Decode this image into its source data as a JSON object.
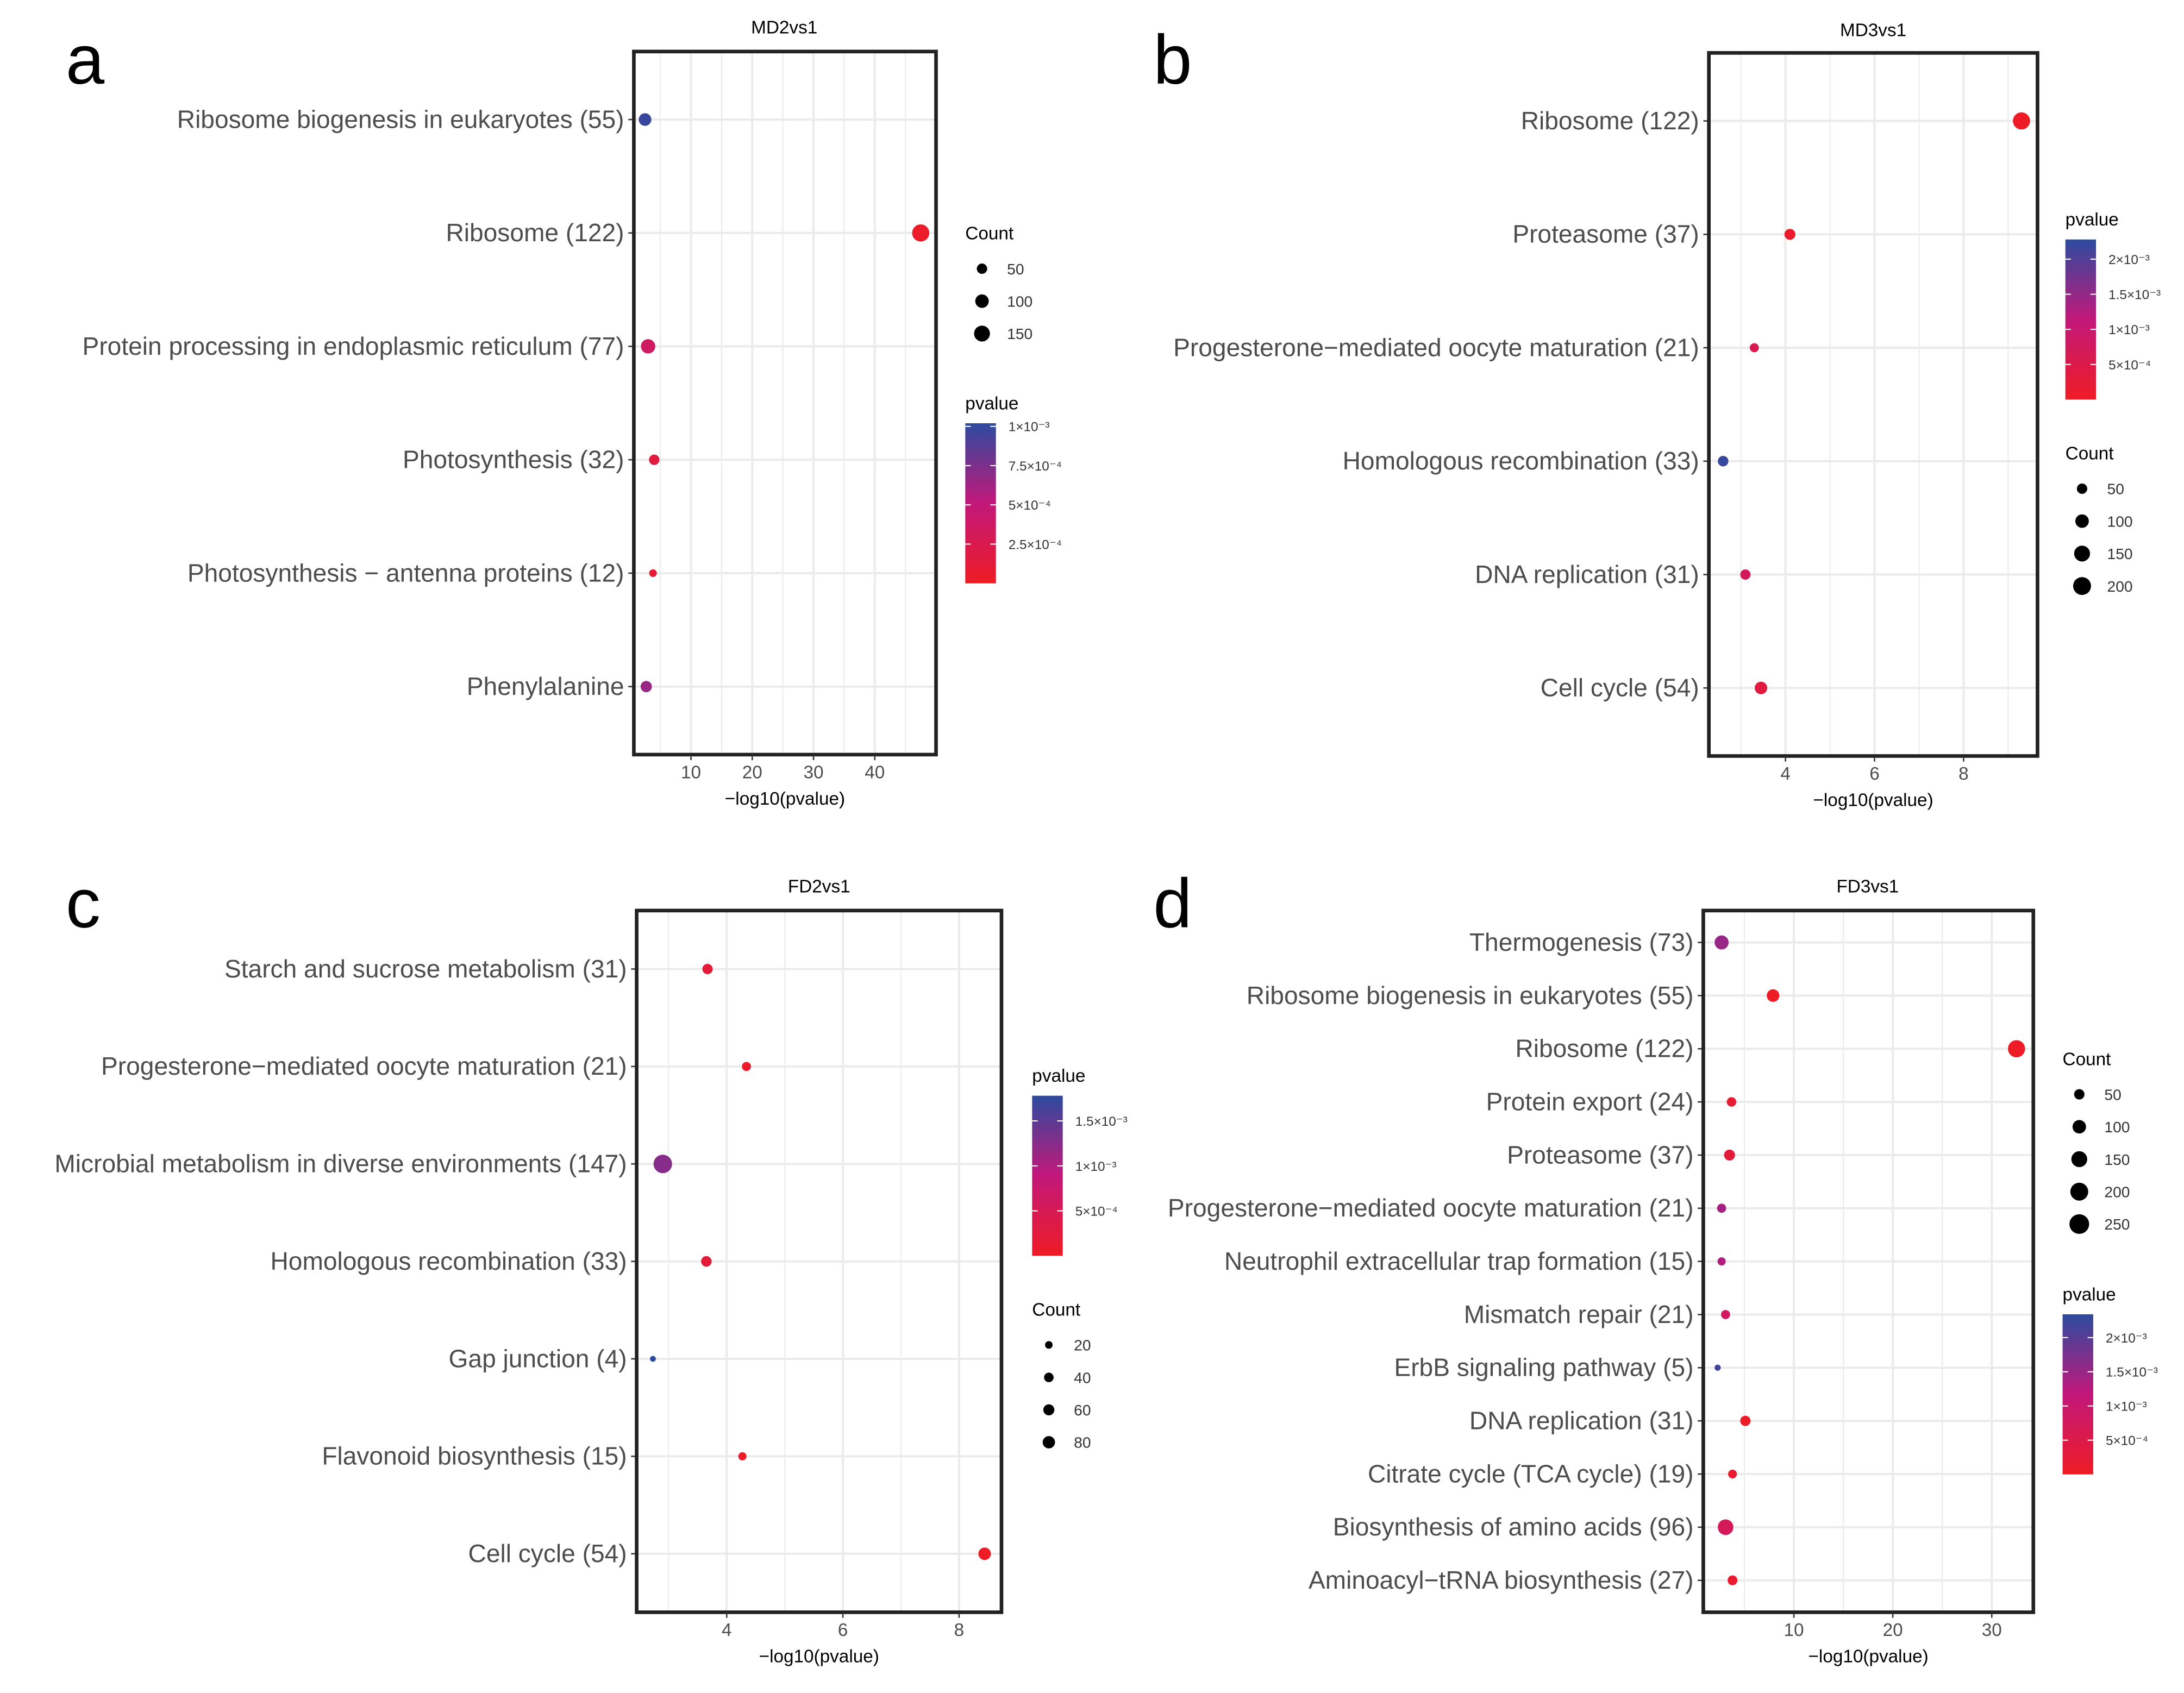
{
  "colors": {
    "low": "#ee1c25",
    "mid": "#c2187a",
    "high": "#2c4b9f",
    "grid": "#ebebeb"
  },
  "chart_data": [
    {
      "type": "scatter",
      "letter": "a",
      "title": "MD2vs1",
      "xlabel": "−log10(pvalue)",
      "xlim": [
        0.68,
        50
      ],
      "xticks": [
        10,
        20,
        30,
        40
      ],
      "grid": true,
      "rows": [
        {
          "label": "Ribosome biogenesis in eukaryotes (55)",
          "x": 2.5,
          "count": 55,
          "pvalue": 0.00098
        },
        {
          "label": "Ribosome (122)",
          "x": 47.5,
          "count": 122,
          "pvalue": 2e-05
        },
        {
          "label": "Protein processing in endoplasmic reticulum (77)",
          "x": 3.0,
          "count": 77,
          "pvalue": 0.00036
        },
        {
          "label": "Photosynthesis (32)",
          "x": 4.0,
          "count": 32,
          "pvalue": 0.00016
        },
        {
          "label": "Photosynthesis − antenna proteins (12)",
          "x": 3.8,
          "count": 12,
          "pvalue": 0.0001
        },
        {
          "label": "Phenylalanine",
          "x": 2.7,
          "count": 40,
          "pvalue": 0.00066
        }
      ],
      "count_legend": {
        "title": "Count",
        "values": [
          50,
          100,
          150
        ],
        "position": "right-top"
      },
      "pvalue_legend": {
        "title": "pvalue",
        "range": [
          0,
          0.00102
        ],
        "ticks": [
          {
            "label": "1×10⁻³",
            "value": 0.001
          },
          {
            "label": "7.5×10⁻⁴",
            "value": 0.00075
          },
          {
            "label": "5×10⁻⁴",
            "value": 0.0005
          },
          {
            "label": "2.5×10⁻⁴",
            "value": 0.00025
          }
        ],
        "position": "right-below"
      }
    },
    {
      "type": "scatter",
      "letter": "b",
      "title": "MD3vs1",
      "xlabel": "−log10(pvalue)",
      "xlim": [
        2.28,
        9.66
      ],
      "xticks": [
        4,
        6,
        8
      ],
      "grid": true,
      "rows": [
        {
          "label": "Ribosome (122)",
          "x": 9.3,
          "count": 122,
          "pvalue": 1e-05
        },
        {
          "label": "Proteasome (37)",
          "x": 4.1,
          "count": 37,
          "pvalue": 0.0001
        },
        {
          "label": "Progesterone−mediated oocyte maturation (21)",
          "x": 3.3,
          "count": 21,
          "pvalue": 0.0006
        },
        {
          "label": "Homologous recombination (33)",
          "x": 2.6,
          "count": 33,
          "pvalue": 0.0022
        },
        {
          "label": "DNA replication (31)",
          "x": 3.1,
          "count": 31,
          "pvalue": 0.0007
        },
        {
          "label": "Cell cycle (54)",
          "x": 3.45,
          "count": 54,
          "pvalue": 0.00035
        }
      ],
      "count_legend": {
        "title": "Count",
        "values": [
          50,
          100,
          150,
          200
        ],
        "position": "right-below"
      },
      "pvalue_legend": {
        "title": "pvalue",
        "range": [
          0,
          0.00228
        ],
        "ticks": [
          {
            "label": "2×10⁻³",
            "value": 0.002
          },
          {
            "label": "1.5×10⁻³",
            "value": 0.0015
          },
          {
            "label": "1×10⁻³",
            "value": 0.001
          },
          {
            "label": "5×10⁻⁴",
            "value": 0.0005
          }
        ],
        "position": "right-top"
      }
    },
    {
      "type": "scatter",
      "letter": "c",
      "title": "FD2vs1",
      "xlabel": "−log10(pvalue)",
      "xlim": [
        2.45,
        8.73
      ],
      "xticks": [
        4,
        6,
        8
      ],
      "grid": true,
      "rows": [
        {
          "label": "Starch and sucrose metabolism (31)",
          "x": 3.67,
          "count": 31,
          "pvalue": 0.00021
        },
        {
          "label": "Progesterone−mediated oocyte maturation (21)",
          "x": 4.34,
          "count": 21,
          "pvalue": 5e-05
        },
        {
          "label": "Microbial metabolism in diverse environments (147)",
          "x": 2.9,
          "count": 147,
          "pvalue": 0.00125
        },
        {
          "label": "Homologous recombination (33)",
          "x": 3.65,
          "count": 33,
          "pvalue": 0.00022
        },
        {
          "label": "Gap junction (4)",
          "x": 2.73,
          "count": 4,
          "pvalue": 0.0018
        },
        {
          "label": "Flavonoid biosynthesis (15)",
          "x": 4.27,
          "count": 15,
          "pvalue": 5e-05
        },
        {
          "label": "Cell cycle (54)",
          "x": 8.44,
          "count": 54,
          "pvalue": 1e-05
        }
      ],
      "count_legend": {
        "title": "Count",
        "values": [
          20,
          40,
          60,
          80
        ],
        "position": "right-below"
      },
      "pvalue_legend": {
        "title": "pvalue",
        "range": [
          0,
          0.00178
        ],
        "ticks": [
          {
            "label": "1.5×10⁻³",
            "value": 0.0015
          },
          {
            "label": "1×10⁻³",
            "value": 0.001
          },
          {
            "label": "5×10⁻⁴",
            "value": 0.0005
          }
        ],
        "position": "right-top"
      }
    },
    {
      "type": "scatter",
      "letter": "d",
      "title": "FD3vs1",
      "xlabel": "−log10(pvalue)",
      "xlim": [
        0.85,
        34.2
      ],
      "xticks": [
        10,
        20,
        30
      ],
      "grid": true,
      "rows": [
        {
          "label": "Thermogenesis (73)",
          "x": 2.7,
          "count": 73,
          "pvalue": 0.0015
        },
        {
          "label": "Ribosome biogenesis in eukaryotes (55)",
          "x": 7.9,
          "count": 55,
          "pvalue": 2e-05
        },
        {
          "label": "Ribosome (122)",
          "x": 32.5,
          "count": 122,
          "pvalue": 1e-05
        },
        {
          "label": "Protein export (24)",
          "x": 3.7,
          "count": 24,
          "pvalue": 0.0002
        },
        {
          "label": "Proteasome (37)",
          "x": 3.5,
          "count": 37,
          "pvalue": 0.0003
        },
        {
          "label": "Progesterone−mediated oocyte maturation (21)",
          "x": 2.7,
          "count": 21,
          "pvalue": 0.0014
        },
        {
          "label": "Neutrophil extracellular trap formation (15)",
          "x": 2.7,
          "count": 15,
          "pvalue": 0.0013
        },
        {
          "label": "Mismatch repair (21)",
          "x": 3.1,
          "count": 21,
          "pvalue": 0.0008
        },
        {
          "label": "ErbB signaling pathway (5)",
          "x": 2.3,
          "count": 5,
          "pvalue": 0.0022
        },
        {
          "label": "DNA replication (31)",
          "x": 5.1,
          "count": 31,
          "pvalue": 5e-05
        },
        {
          "label": "Citrate cycle (TCA cycle) (19)",
          "x": 3.8,
          "count": 19,
          "pvalue": 0.00015
        },
        {
          "label": "Biosynthesis of amino acids (96)",
          "x": 3.1,
          "count": 96,
          "pvalue": 0.0007
        },
        {
          "label": "Aminoacyl−tRNA biosynthesis (27)",
          "x": 3.8,
          "count": 27,
          "pvalue": 0.00015
        }
      ],
      "count_legend": {
        "title": "Count",
        "values": [
          50,
          100,
          150,
          200,
          250
        ],
        "position": "right-top"
      },
      "pvalue_legend": {
        "title": "pvalue",
        "range": [
          0,
          0.00234
        ],
        "ticks": [
          {
            "label": "2×10⁻³",
            "value": 0.002
          },
          {
            "label": "1.5×10⁻³",
            "value": 0.0015
          },
          {
            "label": "1×10⁻³",
            "value": 0.001
          },
          {
            "label": "5×10⁻⁴",
            "value": 0.0005
          }
        ],
        "position": "right-below"
      }
    }
  ]
}
